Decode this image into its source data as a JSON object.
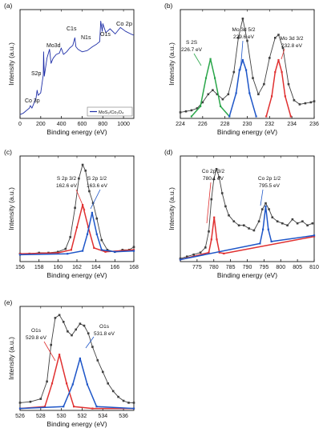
{
  "chart_data": [
    {
      "panel_label": "(a)",
      "type": "line",
      "xlabel": "Binding energy (eV)",
      "ylabel": "Intensity (a.u.)",
      "xlim": [
        0,
        1100
      ],
      "xticks": [
        0,
        200,
        400,
        600,
        800,
        1000
      ],
      "series": [
        {
          "name": "MoS₂/Co₃O₄",
          "color": "#1f2fa8",
          "x": [
            0,
            30,
            60,
            90,
            100,
            115,
            130,
            155,
            165,
            175,
            200,
            225,
            228,
            235,
            260,
            285,
            300,
            320,
            350,
            380,
            398,
            420,
            450,
            480,
            510,
            530,
            540,
            560,
            600,
            650,
            700,
            740,
            770,
            780,
            795,
            800,
            830,
            870,
            920,
            970,
            1020,
            1070,
            1100
          ],
          "y": [
            3,
            4,
            6,
            8,
            10,
            8,
            11,
            16,
            22,
            18,
            20,
            34,
            52,
            33,
            47,
            54,
            43,
            47,
            50,
            51,
            55,
            50,
            52,
            55,
            57,
            63,
            56,
            54,
            52,
            53,
            56,
            58,
            60,
            76,
            68,
            74,
            67,
            70,
            66,
            71,
            68,
            66,
            65
          ]
        }
      ],
      "annotations": [
        "Co 3p",
        "S2p",
        "Mo3d",
        "C1s",
        "N1s",
        "O1s",
        "Co 2p"
      ]
    },
    {
      "panel_label": "(b)",
      "type": "line",
      "xlabel": "Binding energy (eV)",
      "ylabel": "Intensity (a.u.)",
      "xlim": [
        224,
        236
      ],
      "xticks": [
        224,
        226,
        228,
        230,
        232,
        234,
        236
      ],
      "annotations": [
        "S 2S",
        "226.7 eV",
        "Mo 3d 5/2",
        "229.6 eV",
        "Mo 3d 3/2",
        "232.8 eV"
      ],
      "series": [
        {
          "role": "measured",
          "color": "#404040",
          "marker": "square",
          "x": [
            224,
            224.5,
            225,
            225.5,
            226,
            226.5,
            226.9,
            227.3,
            227.8,
            228.3,
            228.8,
            229.2,
            229.6,
            230,
            230.5,
            231,
            231.5,
            232,
            232.5,
            232.8,
            233.2,
            233.7,
            234.2,
            234.7,
            235.2,
            235.7,
            236
          ],
          "y": [
            6,
            7,
            8,
            10,
            16,
            24,
            28,
            24,
            19,
            24,
            46,
            80,
            99,
            77,
            40,
            24,
            34,
            60,
            80,
            83,
            70,
            34,
            18,
            14,
            15,
            16,
            17
          ]
        },
        {
          "role": "component",
          "label": "S 2S 226.7 eV",
          "color": "#2aa64a",
          "x": [
            225,
            225.8,
            226.3,
            226.7,
            227.1,
            227.6,
            228.4
          ],
          "y": [
            2,
            12,
            40,
            59,
            40,
            12,
            2
          ]
        },
        {
          "role": "component",
          "label": "Mo 3d 5/2 229.6 eV",
          "color": "#1e56c8",
          "x": [
            228.4,
            229,
            229.3,
            229.6,
            229.9,
            230.2,
            230.8
          ],
          "y": [
            2,
            25,
            48,
            58,
            48,
            25,
            2
          ]
        },
        {
          "role": "component",
          "label": "Mo 3d 3/2 232.8 eV",
          "color": "#e03030",
          "x": [
            231.7,
            232.2,
            232.5,
            232.8,
            233.1,
            233.4,
            233.9
          ],
          "y": [
            2,
            22,
            46,
            58,
            46,
            22,
            2
          ]
        }
      ]
    },
    {
      "panel_label": "(c)",
      "type": "line",
      "xlabel": "Binding energy (eV)",
      "ylabel": "Intensity (a.u.)",
      "xlim": [
        156,
        168
      ],
      "xticks": [
        156,
        158,
        160,
        162,
        164,
        166,
        168
      ],
      "annotations": [
        "S 2p 3/2",
        "162.6 eV",
        "S 2p 1/2",
        "163.6 eV"
      ],
      "series": [
        {
          "role": "measured",
          "color": "#404040",
          "marker": "square",
          "x": [
            156,
            157,
            158,
            159,
            160,
            160.8,
            161.3,
            161.8,
            162.2,
            162.6,
            162.9,
            163.3,
            163.7,
            164.1,
            164.6,
            165.2,
            166,
            166.8,
            167.5,
            168
          ],
          "y": [
            8,
            8,
            9,
            9,
            10,
            13,
            25,
            55,
            85,
            99,
            93,
            72,
            60,
            44,
            22,
            12,
            10,
            12,
            12,
            15
          ]
        },
        {
          "role": "component",
          "label": "S 2p 3/2 162.6 eV",
          "color": "#e03030",
          "x": [
            156,
            160,
            161.4,
            162,
            162.6,
            163.2,
            163.8,
            165,
            168
          ],
          "y": [
            8,
            9,
            12,
            35,
            58,
            35,
            14,
            10,
            12
          ]
        },
        {
          "role": "component",
          "label": "S 2p 1/2 163.6 eV",
          "color": "#1e56c8",
          "x": [
            156,
            161,
            162.6,
            163.1,
            163.6,
            164.1,
            164.6,
            166,
            168
          ],
          "y": [
            7,
            8,
            11,
            28,
            50,
            28,
            12,
            10,
            11
          ]
        }
      ]
    },
    {
      "panel_label": "(d)",
      "type": "line",
      "xlabel": "Binding energy (eV)",
      "ylabel": "Intensity (a.u.)",
      "xlim": [
        770,
        810
      ],
      "xticks": [
        775,
        780,
        785,
        790,
        795,
        800,
        805,
        810
      ],
      "annotations": [
        "Co 2p 3/2",
        "780.1 eV",
        "Co 2p 1/2",
        "795.5 eV"
      ],
      "series": [
        {
          "role": "measured",
          "color": "#404040",
          "marker": "square",
          "x": [
            770,
            772,
            774,
            776,
            777.5,
            778.5,
            779.3,
            780,
            780.8,
            781.6,
            782.5,
            783.5,
            784.5,
            786,
            787.5,
            789,
            790.5,
            792,
            793.5,
            794.5,
            795.5,
            796.5,
            797.5,
            799,
            800.5,
            802,
            803.5,
            805,
            806.5,
            808,
            809.5
          ],
          "y": [
            3,
            5,
            7,
            9,
            14,
            30,
            62,
            82,
            92,
            84,
            68,
            55,
            46,
            40,
            36,
            36,
            33,
            31,
            40,
            52,
            58,
            52,
            44,
            40,
            38,
            36,
            42,
            38,
            40,
            36,
            38
          ]
        },
        {
          "role": "component",
          "label": "Co 2p 3/2 780.1 eV",
          "color": "#e03030",
          "x": [
            770,
            778.5,
            779.3,
            780.1,
            780.9,
            781.7,
            783,
            810
          ],
          "y": [
            2,
            9,
            22,
            44,
            22,
            9,
            8,
            25
          ]
        },
        {
          "role": "component",
          "label": "Co 2p 1/2 795.5 eV",
          "color": "#1e56c8",
          "x": [
            770,
            793.8,
            794.7,
            795.5,
            796.3,
            797.2,
            810
          ],
          "y": [
            2,
            18,
            32,
            55,
            32,
            20,
            26
          ]
        }
      ]
    },
    {
      "panel_label": "(e)",
      "type": "line",
      "xlabel": "Binding energy (eV)",
      "ylabel": "Intensity (a.u.)",
      "xlim": [
        526,
        537
      ],
      "xticks": [
        526,
        528,
        530,
        532,
        534,
        536
      ],
      "annotations": [
        "O1s",
        "529.8 eV",
        "O1s",
        "531.8 eV"
      ],
      "series": [
        {
          "role": "measured",
          "color": "#404040",
          "marker": "square",
          "x": [
            526,
            527,
            528,
            528.6,
            529,
            529.4,
            529.8,
            530.2,
            530.6,
            531,
            531.4,
            531.8,
            532.2,
            532.6,
            533,
            533.5,
            534,
            534.5,
            535,
            535.5,
            536,
            536.5,
            537
          ],
          "y": [
            8,
            9,
            12,
            30,
            68,
            96,
            99,
            92,
            82,
            78,
            84,
            90,
            88,
            80,
            66,
            52,
            40,
            28,
            20,
            14,
            10,
            8,
            8
          ]
        },
        {
          "role": "component",
          "label": "O1s 529.8 eV",
          "color": "#e03030",
          "x": [
            526,
            528.4,
            529.1,
            529.8,
            530.5,
            531.2,
            533,
            537
          ],
          "y": [
            2,
            4,
            28,
            58,
            28,
            4,
            2,
            2
          ]
        },
        {
          "role": "component",
          "label": "O1s 531.8 eV",
          "color": "#1e56c8",
          "x": [
            526,
            530.2,
            531.1,
            531.8,
            532.5,
            533.4,
            537
          ],
          "y": [
            2,
            4,
            27,
            54,
            27,
            4,
            2
          ]
        }
      ]
    }
  ]
}
